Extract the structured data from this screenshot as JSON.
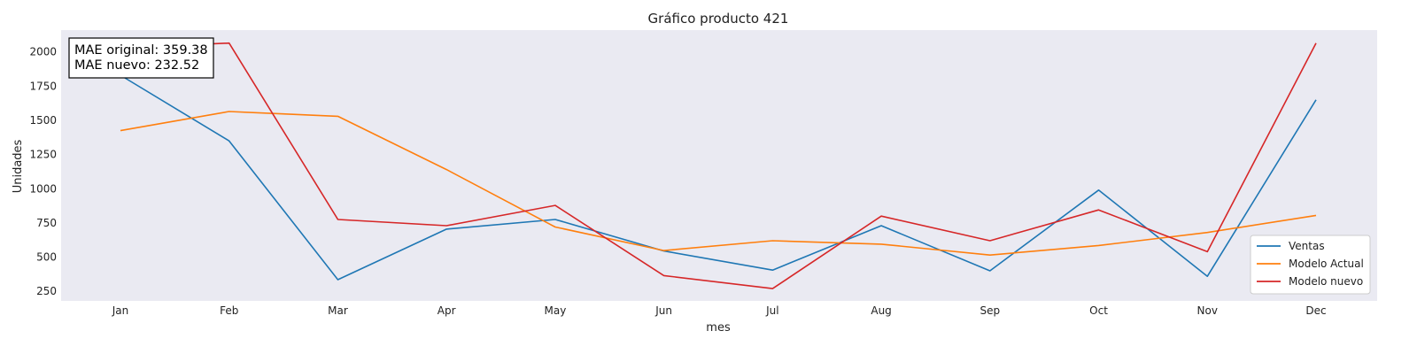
{
  "chart_data": {
    "type": "line",
    "title": "Gráfico producto 421",
    "xlabel": "mes",
    "ylabel": "Unidades",
    "categories": [
      "Jan",
      "Feb",
      "Mar",
      "Apr",
      "May",
      "Jun",
      "Jul",
      "Aug",
      "Sep",
      "Oct",
      "Nov",
      "Dec"
    ],
    "ylim": [
      180,
      2160
    ],
    "yticks": [
      250,
      500,
      750,
      1000,
      1250,
      1500,
      1750,
      2000
    ],
    "grid": false,
    "legend": "lower-right",
    "series": [
      {
        "name": "Ventas",
        "color": "#1f77b4",
        "values": [
          1830,
          1350,
          335,
          705,
          775,
          545,
          405,
          730,
          400,
          990,
          360,
          1650
        ]
      },
      {
        "name": "Modelo Actual",
        "color": "#ff7f0e",
        "values": [
          1425,
          1565,
          1530,
          1140,
          720,
          548,
          620,
          595,
          515,
          585,
          680,
          805
        ]
      },
      {
        "name": "Modelo nuevo",
        "color": "#d62728",
        "values": [
          2030,
          2065,
          775,
          730,
          878,
          365,
          270,
          800,
          620,
          845,
          540,
          2065
        ]
      }
    ],
    "annotation": {
      "line1": "MAE original: 359.38",
      "line2": "MAE nuevo: 232.52"
    }
  }
}
